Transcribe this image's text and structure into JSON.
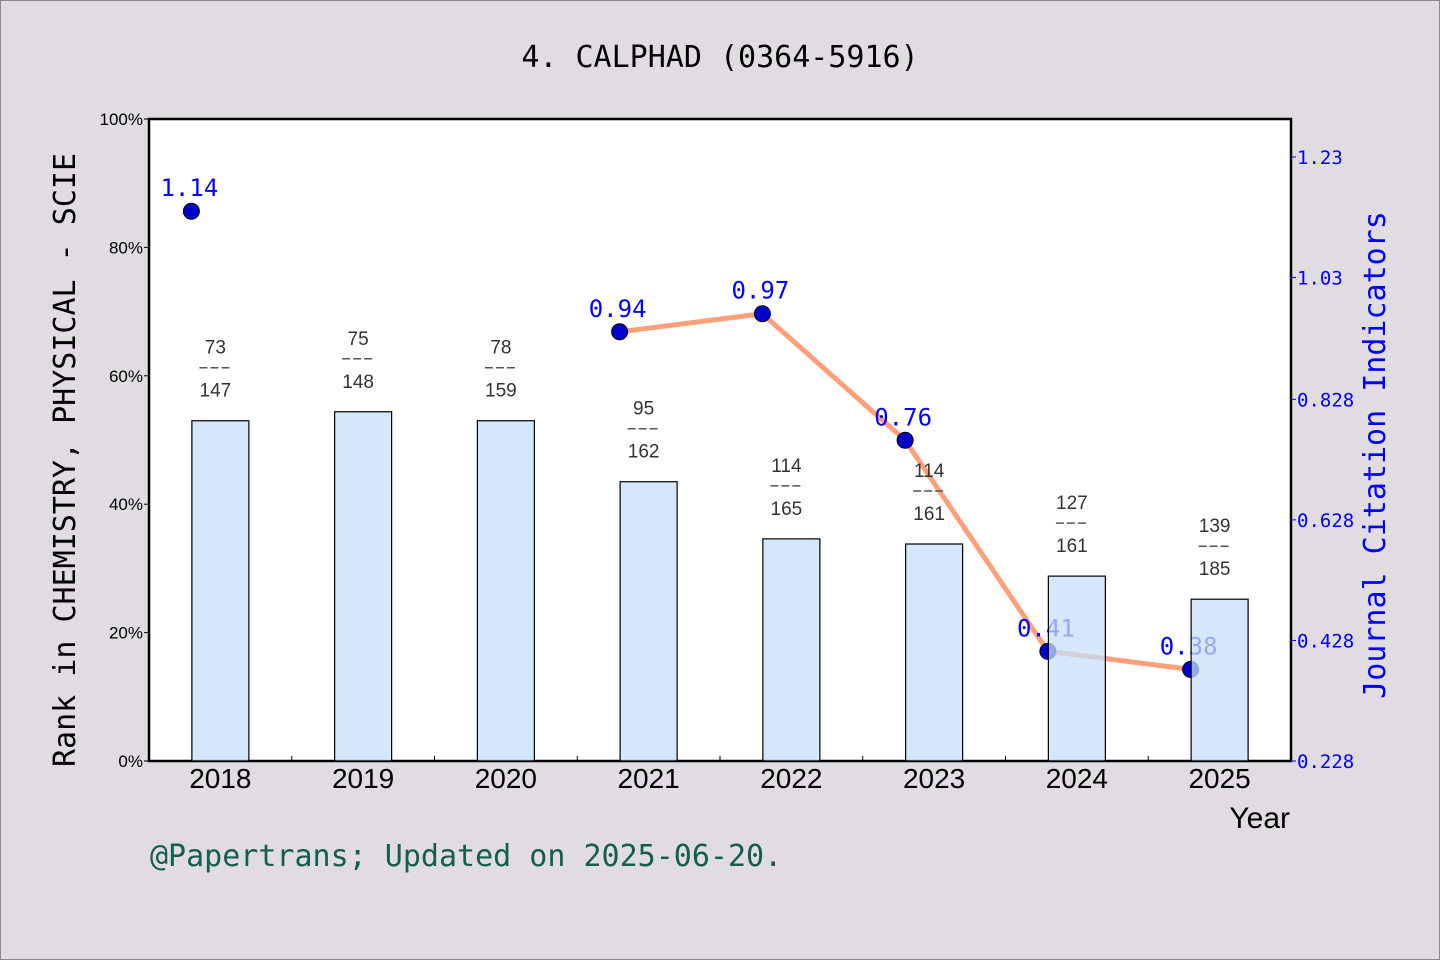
{
  "chart_data": {
    "type": "bar+line",
    "title": "4. CALPHAD (0364-5916)",
    "xlabel": "Year",
    "ylabel_left": "Rank in CHEMISTRY, PHYSICAL - SCIE",
    "ylabel_right": "Journal Citation Indicators",
    "categories": [
      "2018",
      "2019",
      "2020",
      "2021",
      "2022",
      "2023",
      "2024",
      "2025"
    ],
    "bars": {
      "values_percent": [
        53.0,
        54.4,
        53.0,
        43.5,
        34.6,
        33.8,
        28.8,
        25.2
      ],
      "labels": [
        {
          "rank": "73",
          "total": "147"
        },
        {
          "rank": "75",
          "total": "148"
        },
        {
          "rank": "78",
          "total": "159"
        },
        {
          "rank": "95",
          "total": "162"
        },
        {
          "rank": "114",
          "total": "165"
        },
        {
          "rank": "114",
          "total": "161"
        },
        {
          "rank": "127",
          "total": "161"
        },
        {
          "rank": "139",
          "total": "185"
        }
      ],
      "color": "#c5e0f7"
    },
    "line": {
      "values": [
        1.14,
        null,
        null,
        0.94,
        0.97,
        0.76,
        0.41,
        0.38
      ],
      "labels": [
        "1.14",
        "",
        "",
        "0.94",
        "0.97",
        "0.76",
        "0.41",
        "0.38"
      ],
      "line_color": "#ffa07a",
      "marker_color": "#0000cd"
    },
    "left_axis": {
      "ylim": [
        0,
        100
      ],
      "ticks": [
        "0%",
        "20%",
        "40%",
        "60%",
        "80%",
        "100%"
      ]
    },
    "right_axis": {
      "ylim": [
        0.228,
        1.293
      ],
      "ticks": [
        "0.228",
        "0.428",
        "0.628",
        "0.828",
        "1.03",
        "1.23"
      ],
      "color": "#0000ff"
    },
    "grid": false
  },
  "footer": "@Papertrans; Updated on 2025-06-20."
}
